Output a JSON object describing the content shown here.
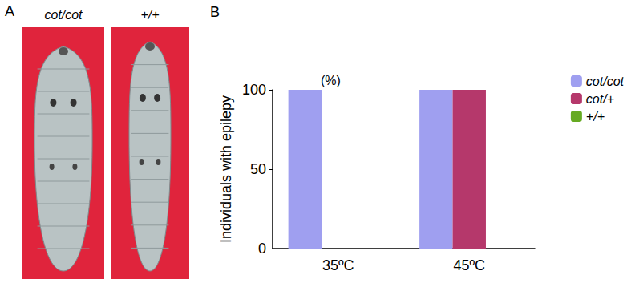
{
  "figure": {
    "panel_labels": [
      "A",
      "B"
    ],
    "photo_captions": [
      "cot/cot",
      "+/+"
    ]
  },
  "chart_data": {
    "type": "bar",
    "ylabel": "Individuals with epilepy",
    "y_unit": "(%)",
    "categories": [
      "35ºC",
      "45ºC"
    ],
    "series": [
      {
        "name": "cot/cot",
        "color": "#9f9ff0",
        "values": [
          100,
          100
        ]
      },
      {
        "name": "cot/+",
        "color": "#b5386b",
        "values": [
          0,
          100
        ]
      },
      {
        "name": "+/+",
        "color": "#66aa22",
        "values": [
          0,
          0
        ]
      }
    ],
    "ylim": [
      0,
      100
    ],
    "yticks": [
      0,
      50,
      100
    ],
    "grid": false,
    "legend": "right"
  }
}
